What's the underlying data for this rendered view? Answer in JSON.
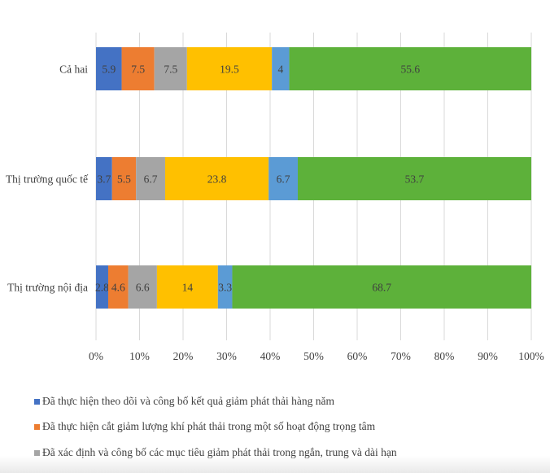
{
  "chart_data": {
    "type": "bar",
    "orientation": "horizontal",
    "stacked": "percent",
    "categories": [
      "Cả hai",
      "Thị trường quốc tế",
      "Thị trường nội địa"
    ],
    "series": [
      {
        "name": "Đã thực hiện theo dõi và công bố kết quả giảm phát thải hàng năm",
        "color": "#4472C4",
        "values": [
          5.9,
          3.7,
          2.8
        ]
      },
      {
        "name": "Đã thực hiện cắt giảm lượng khí phát thải trong một số hoạt động trọng tâm",
        "color": "#ED7D31",
        "values": [
          7.5,
          5.5,
          4.6
        ]
      },
      {
        "name": "Đã xác định và công bố các mục tiêu giảm phát thải trong ngắn, trung và dài hạn",
        "color": "#A5A5A5",
        "values": [
          7.5,
          6.7,
          6.6
        ]
      },
      {
        "color": "#FFC000",
        "values": [
          19.5,
          23.8,
          14
        ]
      },
      {
        "color": "#5B9BD5",
        "values": [
          4,
          6.7,
          3.3
        ]
      },
      {
        "color": "#5DB13A",
        "values": [
          55.6,
          53.7,
          68.7
        ]
      }
    ],
    "xticks": [
      "0%",
      "10%",
      "20%",
      "30%",
      "40%",
      "50%",
      "60%",
      "70%",
      "80%",
      "90%",
      "100%"
    ],
    "xlim": [
      0,
      100
    ],
    "grid": true,
    "legend": "bottom"
  }
}
